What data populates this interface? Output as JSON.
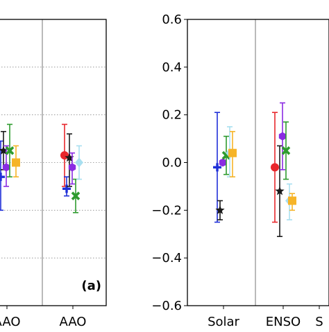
{
  "chart_data": [
    {
      "type": "scatter",
      "panel_label": "(a)",
      "categories": [
        "AAO",
        "AAO"
      ],
      "ylim": [
        -0.6,
        0.6
      ],
      "grid": "dotted horizontal",
      "series": [
        {
          "color": "#e8262b",
          "marker": "circle",
          "points": [
            {
              "cat": 1,
              "y": 0.03,
              "lo": -0.1,
              "hi": 0.16
            }
          ]
        },
        {
          "color": "#1f2fd8",
          "marker": "plus",
          "points": [
            {
              "cat": 0,
              "y": -0.06,
              "lo": -0.2,
              "hi": 0.09
            },
            {
              "cat": 1,
              "y": -0.11,
              "lo": -0.14,
              "hi": -0.06
            }
          ]
        },
        {
          "color": "#1a1a1a",
          "marker": "star",
          "points": [
            {
              "cat": 0,
              "y": 0.05,
              "lo": -0.03,
              "hi": 0.13
            },
            {
              "cat": 1,
              "y": 0.02,
              "lo": -0.1,
              "hi": 0.12
            }
          ]
        },
        {
          "color": "#8a2be2",
          "marker": "hexagon",
          "points": [
            {
              "cat": 0,
              "y": -0.02,
              "lo": -0.1,
              "hi": 0.07
            },
            {
              "cat": 1,
              "y": -0.02,
              "lo": -0.09,
              "hi": 0.04
            }
          ]
        },
        {
          "color": "#2e9b2e",
          "marker": "x",
          "points": [
            {
              "cat": 0,
              "y": 0.05,
              "lo": -0.06,
              "hi": 0.16
            },
            {
              "cat": 1,
              "y": -0.14,
              "lo": -0.21,
              "hi": -0.07
            }
          ]
        },
        {
          "color": "#a8dff0",
          "marker": "diamond",
          "points": [
            {
              "cat": 1,
              "y": 0.0,
              "lo": -0.07,
              "hi": 0.07
            }
          ]
        },
        {
          "color": "#f6b428",
          "marker": "square",
          "points": [
            {
              "cat": 0,
              "y": 0.0,
              "lo": -0.06,
              "hi": 0.07
            }
          ]
        }
      ]
    },
    {
      "type": "scatter",
      "categories": [
        "Solar",
        "ENSO",
        "S"
      ],
      "yticks": [
        "0.6",
        "0.4",
        "0.2",
        "0.0",
        "−0.2",
        "−0.4",
        "−0.6"
      ],
      "ytick_values": [
        0.6,
        0.4,
        0.2,
        0.0,
        -0.2,
        -0.4,
        -0.6
      ],
      "ylim": [
        -0.6,
        0.6
      ],
      "grid": "none",
      "series": [
        {
          "color": "#e8262b",
          "marker": "circle",
          "points": [
            {
              "cat": 1,
              "y": -0.02,
              "lo": -0.25,
              "hi": 0.21
            }
          ]
        },
        {
          "color": "#1f2fd8",
          "marker": "plus",
          "points": [
            {
              "cat": 0,
              "y": -0.02,
              "lo": -0.25,
              "hi": 0.21
            }
          ]
        },
        {
          "color": "#1a1a1a",
          "marker": "star",
          "points": [
            {
              "cat": 0,
              "y": -0.2,
              "lo": -0.24,
              "hi": -0.16
            },
            {
              "cat": 1,
              "y": -0.12,
              "lo": -0.31,
              "hi": 0.07
            }
          ]
        },
        {
          "color": "#8a2be2",
          "marker": "hexagon",
          "points": [
            {
              "cat": 0,
              "y": 0.0,
              "lo": -0.01,
              "hi": 0.01
            },
            {
              "cat": 1,
              "y": 0.11,
              "lo": -0.03,
              "hi": 0.25
            }
          ]
        },
        {
          "color": "#2e9b2e",
          "marker": "x",
          "points": [
            {
              "cat": 0,
              "y": 0.03,
              "lo": -0.05,
              "hi": 0.11
            },
            {
              "cat": 1,
              "y": 0.05,
              "lo": -0.07,
              "hi": 0.17
            }
          ]
        },
        {
          "color": "#a8dff0",
          "marker": "diamond",
          "points": [
            {
              "cat": 0,
              "y": 0.04,
              "lo": -0.06,
              "hi": 0.15
            },
            {
              "cat": 1,
              "y": -0.16,
              "lo": -0.24,
              "hi": -0.09
            }
          ]
        },
        {
          "color": "#f6b428",
          "marker": "square",
          "points": [
            {
              "cat": 0,
              "y": 0.04,
              "lo": -0.06,
              "hi": 0.13
            },
            {
              "cat": 1,
              "y": -0.16,
              "lo": -0.2,
              "hi": -0.13
            }
          ]
        }
      ]
    }
  ]
}
